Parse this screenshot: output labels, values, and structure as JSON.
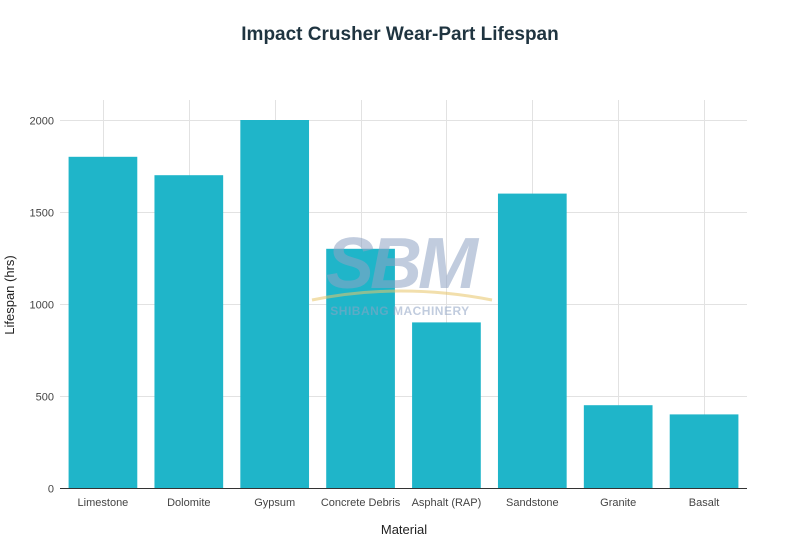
{
  "chart_data": {
    "type": "bar",
    "title": "Impact Crusher Wear-Part Lifespan",
    "xlabel": "Material",
    "ylabel": "Lifespan (hrs)",
    "categories": [
      "Limestone",
      "Dolomite",
      "Gypsum",
      "Concrete Debris",
      "Asphalt (RAP)",
      "Sandstone",
      "Granite",
      "Basalt"
    ],
    "values": [
      1800,
      1700,
      2000,
      1300,
      900,
      1600,
      450,
      400
    ],
    "ylim": [
      0,
      2000
    ],
    "yticks": [
      0,
      500,
      1000,
      1500,
      2000
    ],
    "ytick_labels": [
      "0",
      "500",
      "1000",
      "1500",
      "2000"
    ],
    "grid": true,
    "bar_color": "#1fb5c9"
  },
  "watermark": {
    "logo_text": "SBM",
    "subtitle": "SHIBANG MACHINERY"
  }
}
